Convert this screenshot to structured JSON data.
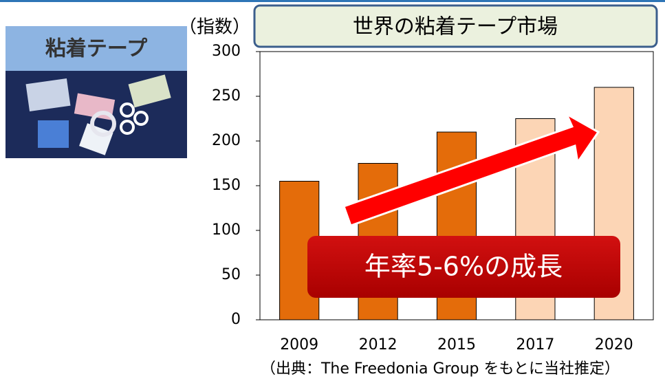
{
  "product_label": "粘着テープ",
  "chart_data": {
    "type": "bar",
    "title": "世界の粘着テープ市場",
    "ylabel": "（指数）",
    "categories": [
      "2009",
      "2012",
      "2015",
      "2017",
      "2020"
    ],
    "values": [
      155,
      175,
      210,
      225,
      260
    ],
    "colors": [
      "#e46c0a",
      "#e46c0a",
      "#e46c0a",
      "#fcd5b5",
      "#fcd5b5"
    ],
    "ylim": [
      0,
      300
    ],
    "yticks": [
      0,
      50,
      100,
      150,
      200,
      250,
      300
    ],
    "grid": false,
    "annotation": "年率5-6%の成長",
    "source": "（出典：The Freedonia Group をもとに当社推定）"
  }
}
